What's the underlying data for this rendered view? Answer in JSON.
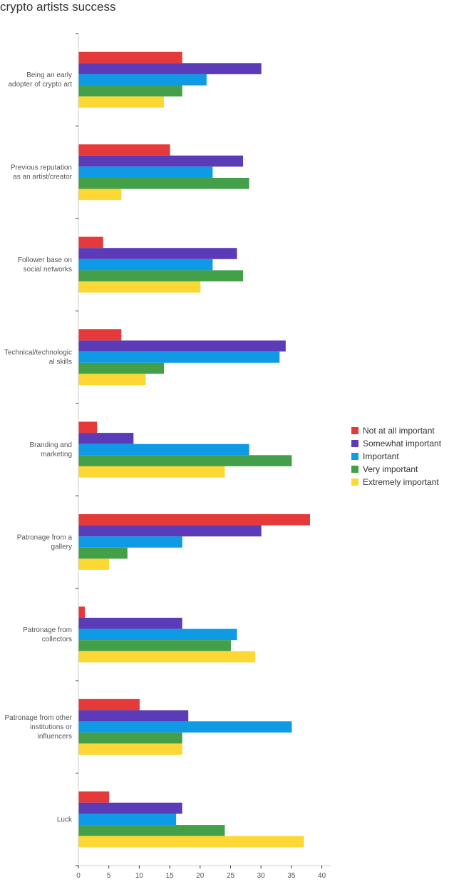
{
  "chart_data": {
    "type": "bar",
    "orientation": "horizontal",
    "title": "crypto artists success",
    "categories": [
      [
        "Being an early",
        "adopter of crypto art"
      ],
      [
        "Previous reputation",
        "as an artist/creator"
      ],
      [
        "Follower base on",
        "social networks"
      ],
      [
        "Technical/technologic",
        "al skills"
      ],
      [
        "Branding and",
        "marketing"
      ],
      [
        "Patronage from a",
        "gallery"
      ],
      [
        "Patronage from",
        "collectors"
      ],
      [
        "Patronage from other",
        "institutions or",
        "influencers"
      ],
      [
        "Luck"
      ]
    ],
    "series": [
      {
        "name": "Not at all important",
        "color": "#e63a3a",
        "values": [
          17,
          15,
          4,
          7,
          3,
          38,
          1,
          10,
          5
        ]
      },
      {
        "name": "Somewhat important",
        "color": "#5c3bb8",
        "values": [
          30,
          27,
          26,
          34,
          9,
          30,
          17,
          18,
          17
        ]
      },
      {
        "name": "Important",
        "color": "#0f9ae6",
        "values": [
          21,
          22,
          22,
          33,
          28,
          17,
          26,
          35,
          16
        ]
      },
      {
        "name": "Very important",
        "color": "#44a048",
        "values": [
          17,
          28,
          27,
          14,
          35,
          8,
          25,
          17,
          24
        ]
      },
      {
        "name": "Extremely important",
        "color": "#fdd835",
        "values": [
          14,
          7,
          20,
          11,
          24,
          5,
          29,
          17,
          37
        ]
      }
    ],
    "xticks": [
      "0",
      "5",
      "10",
      "15",
      "20",
      "25",
      "30",
      "35",
      "40"
    ],
    "xlim": [
      0,
      41
    ],
    "legend_position": "right",
    "grid": false
  }
}
